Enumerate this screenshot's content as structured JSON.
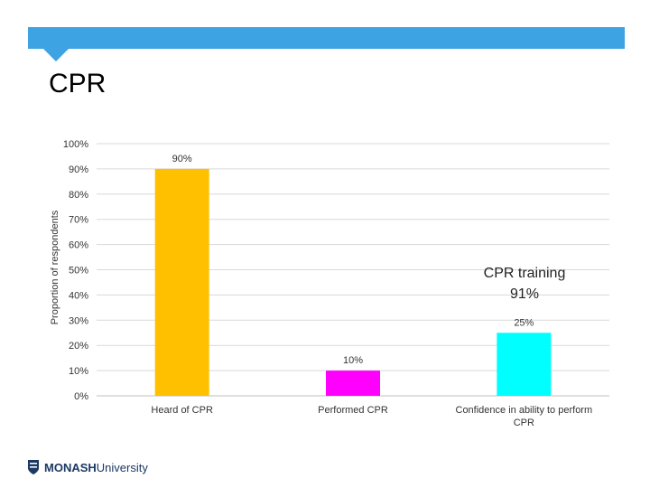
{
  "slide": {
    "title": "CPR",
    "accent_color": "#3ea3e2"
  },
  "logo": {
    "text_bold": "MONASH",
    "text_regular": "University",
    "icon": "monash-shield-icon"
  },
  "chart_data": {
    "type": "bar",
    "categories": [
      "Heard of CPR",
      "Performed CPR",
      "Confidence in ability to perform CPR"
    ],
    "category_lines": [
      [
        "Heard of CPR"
      ],
      [
        "Performed CPR"
      ],
      [
        "Confidence in ability to perform",
        "CPR"
      ]
    ],
    "values": [
      90,
      10,
      25
    ],
    "value_labels": [
      "90%",
      "10%",
      "25%"
    ],
    "colors": [
      "#ffc000",
      "#ff00ff",
      "#00ffff"
    ],
    "ylabel": "Proportion of respondents",
    "ylim": [
      0,
      100
    ],
    "yticks": [
      0,
      10,
      20,
      30,
      40,
      50,
      60,
      70,
      80,
      90,
      100
    ],
    "grid": true,
    "annotation": {
      "line1": "CPR training",
      "line2": "91%"
    }
  }
}
